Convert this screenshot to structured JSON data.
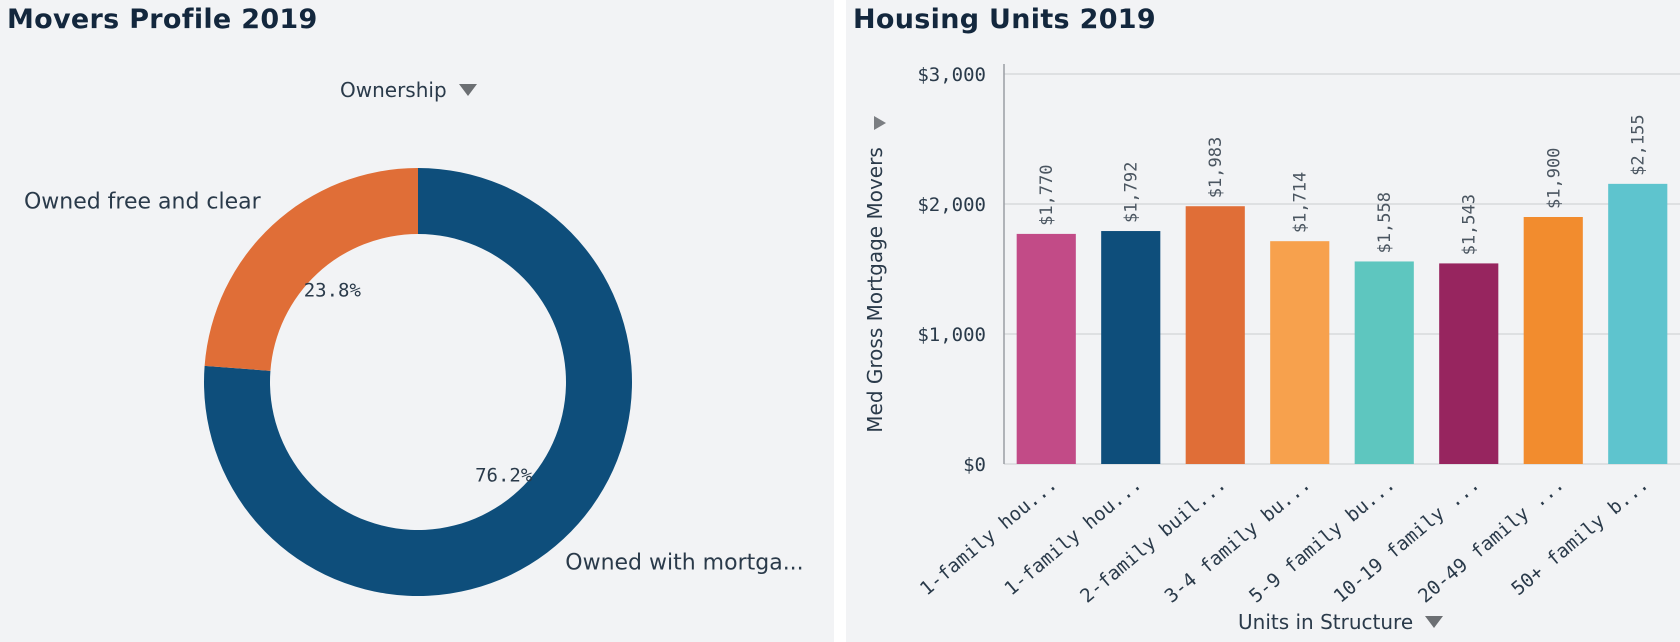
{
  "left_panel": {
    "title": "Movers Profile 2019",
    "dimension": {
      "label": "Ownership",
      "icon": "dropdown-caret-icon"
    }
  },
  "right_panel": {
    "title": "Housing Units 2019",
    "dimension": {
      "label": "Units in Structure",
      "icon": "dropdown-caret-icon"
    },
    "measure_toggle_icon": "play-right-icon"
  },
  "chart_data": [
    {
      "type": "pie",
      "donut": true,
      "title": "Movers Profile 2019",
      "dimension": "Ownership",
      "slices": [
        {
          "label": "Owned with mortga...",
          "value": 76.2,
          "value_label": "76.2%",
          "color": "#0e4e7b"
        },
        {
          "label": "Owned free and clear",
          "value": 23.8,
          "value_label": "23.8%",
          "color": "#e06e37"
        }
      ],
      "legend": "none"
    },
    {
      "type": "bar",
      "title": "Housing Units 2019",
      "xlabel": "Units in Structure",
      "ylabel": "Med Gross Mortgage Movers",
      "ylim": [
        0,
        3000
      ],
      "yticks": [
        0,
        1000,
        2000,
        3000
      ],
      "ytick_labels": [
        "$0",
        "$1,000",
        "$2,000",
        "$3,000"
      ],
      "grid": true,
      "categories": [
        "1-family hou...",
        "1-family hou...",
        "2-family buil...",
        "3-4 family bu...",
        "5-9 family bu...",
        "10-19 family ...",
        "20-49 family ...",
        "50+ family b..."
      ],
      "values": [
        1770,
        1792,
        1983,
        1714,
        1558,
        1543,
        1900,
        2155
      ],
      "value_labels": [
        "$1,770",
        "$1,792",
        "$1,983",
        "$1,714",
        "$1,558",
        "$1,543",
        "$1,900",
        "$2,155"
      ],
      "colors": [
        "#c24b87",
        "#0e4e7b",
        "#e06e37",
        "#f7a14d",
        "#5ec6bf",
        "#97255f",
        "#f28c2e",
        "#5ec4ce"
      ]
    }
  ]
}
